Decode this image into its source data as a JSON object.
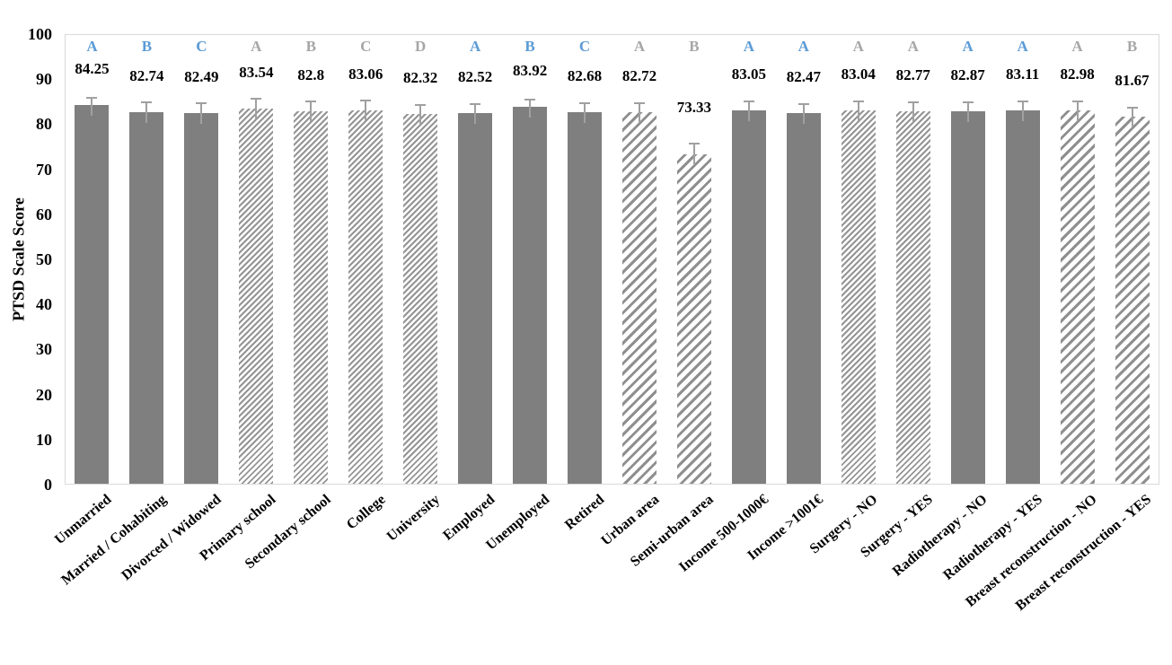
{
  "chart_data": {
    "type": "bar",
    "title": "",
    "xlabel": "",
    "ylabel": "PTSD Scale Score",
    "ylim": [
      0,
      100
    ],
    "ytick_step": 10,
    "yticks": [
      0,
      10,
      20,
      30,
      40,
      50,
      60,
      70,
      80,
      90,
      100
    ],
    "grid": false,
    "legend_position": "none",
    "categories": [
      "Unmarried",
      "Married / Cohabiting",
      "Divorced / Widowed",
      "Primary school",
      "Secondary school",
      "College",
      "University",
      "Employed",
      "Unemployed",
      "Retired",
      "Urban area",
      "Semi-urban area",
      "Income 500-1000€",
      "Income >1001€",
      "Surgery - NO",
      "Surgery - YES",
      "Radiotherapy - NO",
      "Radiotherapy - YES",
      "Breast reconstruction - NO",
      "Breast reconstruction - YES"
    ],
    "values": [
      84.25,
      82.74,
      82.49,
      83.54,
      82.8,
      83.06,
      82.32,
      82.52,
      83.92,
      82.68,
      82.72,
      73.33,
      83.05,
      82.47,
      83.04,
      82.77,
      82.87,
      83.11,
      82.98,
      81.67
    ],
    "error_upper": [
      1.7,
      2.1,
      2.1,
      2.2,
      2.3,
      2.1,
      2.0,
      2.0,
      1.5,
      1.9,
      1.9,
      2.3,
      2.0,
      1.9,
      2.1,
      2.1,
      1.9,
      1.9,
      2.1,
      2.0
    ],
    "significance_letters": [
      "A",
      "B",
      "C",
      "A",
      "B",
      "C",
      "D",
      "A",
      "B",
      "C",
      "A",
      "B",
      "A",
      "A",
      "A",
      "A",
      "A",
      "A",
      "A",
      "B"
    ],
    "letter_color_key": [
      "blue",
      "blue",
      "blue",
      "gray",
      "gray",
      "gray",
      "gray",
      "blue",
      "blue",
      "blue",
      "gray",
      "gray",
      "blue",
      "blue",
      "gray",
      "gray",
      "blue",
      "blue",
      "gray",
      "gray"
    ],
    "bar_patterns": [
      "solid",
      "solid",
      "solid",
      "fine",
      "fine",
      "fine",
      "fine",
      "solid",
      "solid",
      "solid",
      "coarse",
      "coarse",
      "solid",
      "solid",
      "fine",
      "fine",
      "solid",
      "solid",
      "coarse",
      "coarse"
    ],
    "colors": {
      "bar_solid": "#7f7f7f",
      "hatch_line": "#949494",
      "letter_blue": "#5b9bd5",
      "letter_gray": "#a6a6a6",
      "value_text": "#000000",
      "axis_text": "#000000",
      "plot_border": "#d9d9d9",
      "error_bar": "#a0a0a0"
    }
  }
}
